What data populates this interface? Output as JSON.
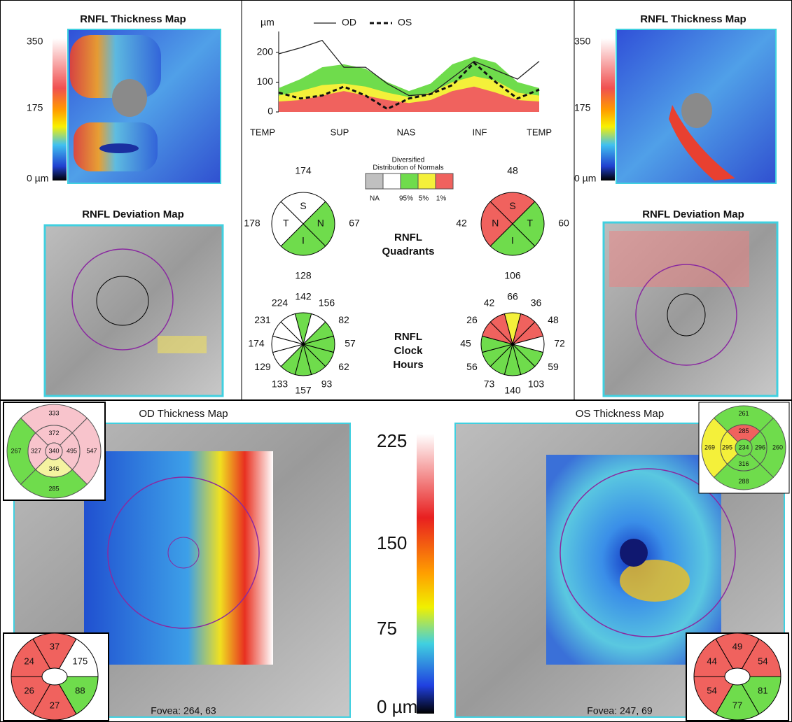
{
  "od": {
    "thickness_title": "RNFL Thickness Map",
    "scale_labels": [
      "350",
      "175",
      "0 µm"
    ],
    "deviation_title": "RNFL Deviation Map"
  },
  "os": {
    "thickness_title": "RNFL Thickness Map",
    "scale_labels": [
      "350",
      "175",
      "0 µm"
    ],
    "deviation_title": "RNFL Deviation Map"
  },
  "tsnit": {
    "unit": "µm",
    "ylim": [
      0,
      270
    ],
    "yticks": [
      0,
      100,
      200
    ],
    "x_labels": [
      "TEMP",
      "SUP",
      "NAS",
      "INF",
      "TEMP"
    ],
    "bands": [
      {
        "color": "#6fdc4c",
        "values": [
          80,
          110,
          150,
          160,
          145,
          100,
          70,
          95,
          160,
          185,
          165,
          100,
          80
        ]
      },
      {
        "color": "#f4f03a",
        "values": [
          55,
          70,
          90,
          95,
          85,
          65,
          50,
          65,
          100,
          120,
          105,
          65,
          55
        ]
      },
      {
        "color": "#f0625e",
        "values": [
          35,
          40,
          55,
          70,
          55,
          40,
          30,
          40,
          70,
          85,
          65,
          40,
          35
        ]
      }
    ],
    "series": [
      {
        "name": "OD",
        "color": "#222222",
        "dashed": false,
        "values": [
          195,
          215,
          240,
          150,
          150,
          95,
          55,
          60,
          115,
          170,
          140,
          110,
          170
        ]
      },
      {
        "name": "OS",
        "color": "#111111",
        "dashed": true,
        "values": [
          65,
          45,
          55,
          85,
          55,
          10,
          45,
          60,
          90,
          165,
          100,
          45,
          75
        ]
      }
    ]
  },
  "legend": {
    "title": [
      "Diversified",
      "Distribution of Normals"
    ],
    "boxes": [
      "#c0c0c0",
      "#ffffff",
      "#6fdc4c",
      "#f4f03a",
      "#f0625e"
    ],
    "labels": [
      "NA",
      "95%",
      "5%",
      "1%"
    ]
  },
  "quadrants": {
    "label": [
      "RNFL",
      "Quadrants"
    ],
    "od": [
      {
        "letter": "S",
        "value": 174,
        "color": "#ffffff"
      },
      {
        "letter": "N",
        "value": 67,
        "color": "#6fdc4c"
      },
      {
        "letter": "I",
        "value": 128,
        "color": "#6fdc4c"
      },
      {
        "letter": "T",
        "value": 178,
        "color": "#ffffff"
      }
    ],
    "os": [
      {
        "letter": "S",
        "value": 48,
        "color": "#f0625e"
      },
      {
        "letter": "T",
        "value": 60,
        "color": "#6fdc4c"
      },
      {
        "letter": "I",
        "value": 106,
        "color": "#6fdc4c"
      },
      {
        "letter": "N",
        "value": 42,
        "color": "#f0625e"
      }
    ]
  },
  "clock_hours": {
    "label": [
      "RNFL",
      "Clock",
      "Hours"
    ],
    "od": {
      "values": [
        142,
        156,
        82,
        57,
        62,
        93,
        157,
        133,
        129,
        174,
        231,
        224
      ],
      "colors": [
        "#6fdc4c",
        "#ffffff",
        "#6fdc4c",
        "#6fdc4c",
        "#6fdc4c",
        "#6fdc4c",
        "#6fdc4c",
        "#6fdc4c",
        "#ffffff",
        "#ffffff",
        "#ffffff",
        "#ffffff"
      ]
    },
    "os": {
      "values": [
        66,
        36,
        48,
        72,
        59,
        103,
        140,
        73,
        56,
        45,
        26,
        42
      ],
      "colors": [
        "#f4f03a",
        "#f0625e",
        "#f0625e",
        "#ffffff",
        "#6fdc4c",
        "#6fdc4c",
        "#6fdc4c",
        "#6fdc4c",
        "#6fdc4c",
        "#6fdc4c",
        "#f0625e",
        "#f0625e"
      ]
    }
  },
  "bottom": {
    "od_title": "OD Thickness Map",
    "os_title": "OS Thickness Map",
    "scale_labels": [
      "225",
      "150",
      "75",
      "0 µm"
    ],
    "od_fovea": "Fovea: 264, 63",
    "os_fovea": "Fovea: 247, 69",
    "od_grid": [
      {
        "value": 333,
        "color": "#f8c4cc"
      },
      {
        "value": 547,
        "color": "#f8c4cc"
      },
      {
        "value": 285,
        "color": "#6fdc4c"
      },
      {
        "value": 267,
        "color": "#6fdc4c"
      },
      {
        "value": 372,
        "color": "#f8c4cc"
      },
      {
        "value": 495,
        "color": "#f8c4cc"
      },
      {
        "value": 346,
        "color": "#f4f3a0"
      },
      {
        "value": 327,
        "color": "#f8c4cc"
      },
      {
        "value": 340,
        "color": "#f8c4cc"
      }
    ],
    "os_grid": [
      {
        "value": 261,
        "color": "#6fdc4c"
      },
      {
        "value": 260,
        "color": "#6fdc4c"
      },
      {
        "value": 288,
        "color": "#6fdc4c"
      },
      {
        "value": 269,
        "color": "#f4f03a"
      },
      {
        "value": 285,
        "color": "#f0625e"
      },
      {
        "value": 296,
        "color": "#6fdc4c"
      },
      {
        "value": 316,
        "color": "#6fdc4c"
      },
      {
        "value": 295,
        "color": "#f4f03a"
      },
      {
        "value": 234,
        "color": "#6fdc4c"
      }
    ],
    "od_sectors": [
      {
        "value": 37,
        "color": "#f0625e"
      },
      {
        "value": 175,
        "color": "#ffffff"
      },
      {
        "value": 88,
        "color": "#6fdc4c"
      },
      {
        "value": 27,
        "color": "#f0625e"
      },
      {
        "value": 26,
        "color": "#f0625e"
      },
      {
        "value": 24,
        "color": "#f0625e"
      }
    ],
    "os_sectors": [
      {
        "value": 49,
        "color": "#f0625e"
      },
      {
        "value": 54,
        "color": "#f0625e"
      },
      {
        "value": 81,
        "color": "#6fdc4c"
      },
      {
        "value": 77,
        "color": "#6fdc4c"
      },
      {
        "value": 54,
        "color": "#f0625e"
      },
      {
        "value": 44,
        "color": "#f0625e"
      }
    ]
  }
}
